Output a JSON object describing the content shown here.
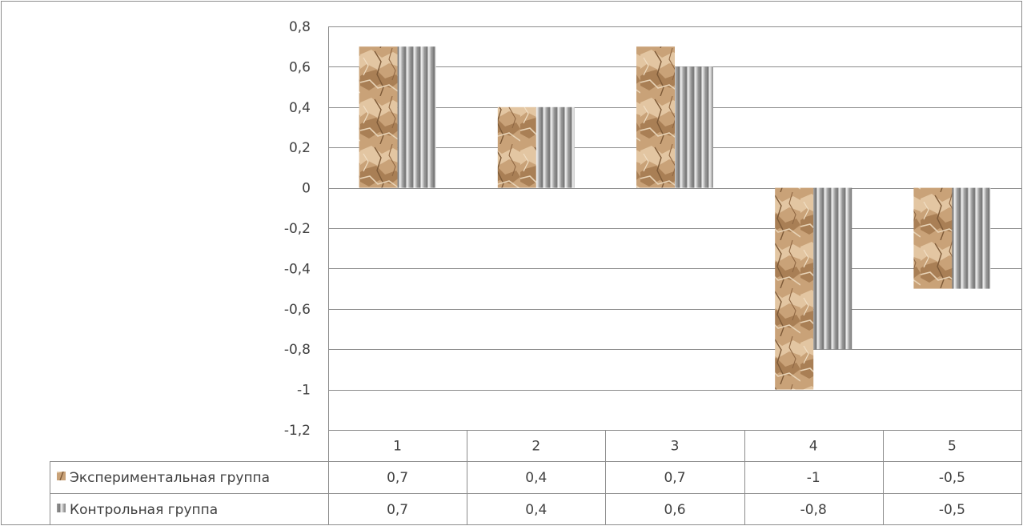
{
  "chart_data": {
    "type": "bar",
    "categories": [
      "1",
      "2",
      "3",
      "4",
      "5"
    ],
    "series": [
      {
        "name": "Экспериментальная группа",
        "values": [
          0.7,
          0.4,
          0.7,
          -1,
          -0.5
        ],
        "display": [
          "0,7",
          "0,4",
          "0,7",
          "-1",
          "-0,5"
        ],
        "pattern": "crumpled-paper-texture",
        "color": "#c8a177"
      },
      {
        "name": "Контрольная группа",
        "values": [
          0.7,
          0.4,
          0.6,
          -0.8,
          -0.5
        ],
        "display": [
          "0,7",
          "0,4",
          "0,6",
          "-0,8",
          "-0,5"
        ],
        "pattern": "vertical-stripes",
        "color": "#a0a0a0"
      }
    ],
    "y_ticks": [
      0.8,
      0.6,
      0.4,
      0.2,
      0,
      -0.2,
      -0.4,
      -0.6,
      -0.8,
      -1,
      -1.2
    ],
    "y_tick_labels": [
      "0,8",
      "0,6",
      "0,4",
      "0,2",
      "0",
      "-0,2",
      "-0,4",
      "-0,6",
      "-0,8",
      "-1",
      "-1,2"
    ],
    "ylim": [
      -1.2,
      0.8
    ],
    "grid": true,
    "data_table": true,
    "title": "",
    "xlabel": "",
    "ylabel": ""
  },
  "colors": {
    "grid": "#8c8c8c",
    "axis": "#8c8c8c",
    "text": "#404040",
    "background": "#ffffff"
  }
}
